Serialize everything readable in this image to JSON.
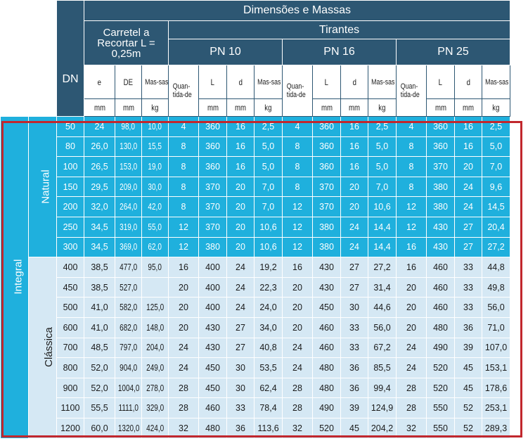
{
  "header": {
    "dn": "DN",
    "dimensoes_massas": "Dimensões e Massas",
    "carretel_title": "Carretel a Recortar L = 0,25m",
    "tirantes": "Tirantes",
    "pn10": "PN 10",
    "pn16": "PN 16",
    "pn25": "PN 25",
    "col_e": "e",
    "col_de": "DE",
    "col_massas": "Mas-sas",
    "col_quantidade": "Quan-tida-de",
    "col_l": "L",
    "col_d": "d",
    "unit_mm": "mm",
    "unit_kg": "kg"
  },
  "groups": {
    "integral": "Integral",
    "natural": "Natural",
    "classica": "Clássica"
  },
  "rows_natural": [
    [
      "50",
      "24",
      "98,0",
      "10,0",
      "4",
      "360",
      "16",
      "2,5",
      "4",
      "360",
      "16",
      "2,5",
      "4",
      "360",
      "16",
      "2,5"
    ],
    [
      "80",
      "26,0",
      "130,0",
      "15,5",
      "8",
      "360",
      "16",
      "5,0",
      "8",
      "360",
      "16",
      "5,0",
      "8",
      "360",
      "16",
      "5,0"
    ],
    [
      "100",
      "26,5",
      "153,0",
      "19,0",
      "8",
      "360",
      "16",
      "5,0",
      "8",
      "360",
      "16",
      "5,0",
      "8",
      "370",
      "20",
      "7,0"
    ],
    [
      "150",
      "29,5",
      "209,0",
      "30,0",
      "8",
      "370",
      "20",
      "7,0",
      "8",
      "370",
      "20",
      "7,0",
      "8",
      "380",
      "24",
      "9,6"
    ],
    [
      "200",
      "32,0",
      "264,0",
      "42,0",
      "8",
      "370",
      "20",
      "7,0",
      "12",
      "370",
      "20",
      "10,6",
      "12",
      "380",
      "24",
      "14,5"
    ],
    [
      "250",
      "34,5",
      "319,0",
      "55,0",
      "12",
      "370",
      "20",
      "10,6",
      "12",
      "380",
      "24",
      "14,4",
      "12",
      "430",
      "27",
      "20,4"
    ],
    [
      "300",
      "34,5",
      "369,0",
      "62,0",
      "12",
      "380",
      "20",
      "10,6",
      "12",
      "380",
      "24",
      "14,4",
      "16",
      "430",
      "27",
      "27,2"
    ]
  ],
  "rows_classica": [
    [
      "400",
      "38,5",
      "477,0",
      "95,0",
      "16",
      "400",
      "24",
      "19,2",
      "16",
      "430",
      "27",
      "27,2",
      "16",
      "460",
      "33",
      "44,8"
    ],
    [
      "450",
      "38,5",
      "527,0",
      "",
      "20",
      "400",
      "24",
      "22,3",
      "20",
      "430",
      "27",
      "31,4",
      "20",
      "460",
      "33",
      "49,8"
    ],
    [
      "500",
      "41,0",
      "582,0",
      "125,0",
      "20",
      "400",
      "24",
      "24,0",
      "20",
      "450",
      "30",
      "44,6",
      "20",
      "460",
      "33",
      "56,0"
    ],
    [
      "600",
      "41,0",
      "682,0",
      "148,0",
      "20",
      "430",
      "27",
      "34,0",
      "20",
      "460",
      "33",
      "56,0",
      "20",
      "480",
      "36",
      "71,0"
    ],
    [
      "700",
      "48,5",
      "797,0",
      "204,0",
      "24",
      "430",
      "27",
      "40,8",
      "24",
      "460",
      "33",
      "67,2",
      "24",
      "490",
      "39",
      "107,0"
    ],
    [
      "800",
      "52,0",
      "904,0",
      "249,0",
      "24",
      "450",
      "30",
      "53,5",
      "24",
      "480",
      "36",
      "85,5",
      "24",
      "520",
      "45",
      "153,1"
    ],
    [
      "900",
      "52,0",
      "1004,0",
      "278,0",
      "28",
      "450",
      "30",
      "62,4",
      "28",
      "480",
      "36",
      "99,4",
      "28",
      "520",
      "45",
      "178,6"
    ],
    [
      "1100",
      "55,5",
      "1111,0",
      "329,0",
      "28",
      "460",
      "33",
      "78,4",
      "28",
      "490",
      "39",
      "124,9",
      "28",
      "550",
      "52",
      "253,1"
    ],
    [
      "1200",
      "60,0",
      "1320,0",
      "424,0",
      "32",
      "480",
      "36",
      "113,6",
      "32",
      "520",
      "45",
      "204,2",
      "32",
      "550",
      "52",
      "289,3"
    ]
  ]
}
